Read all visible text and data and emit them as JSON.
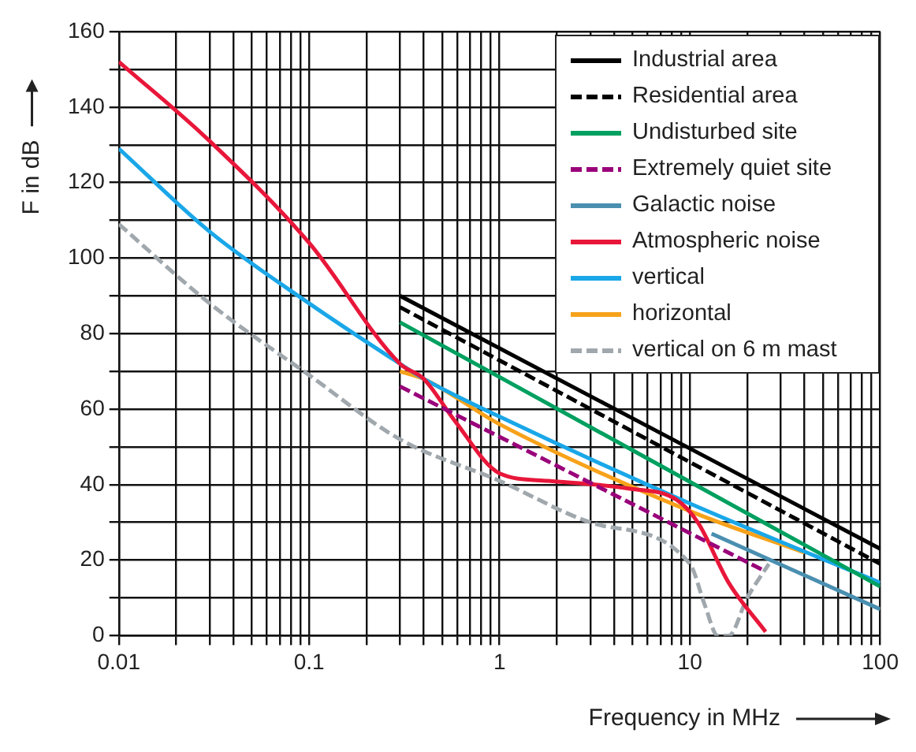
{
  "chart_data": {
    "type": "line",
    "xlabel": "Frequency in MHz",
    "ylabel": "F in dB",
    "log": "x",
    "xlim": [
      0.01,
      100
    ],
    "ylim": [
      0,
      160
    ],
    "xticks": [
      0.01,
      {
        "value": 0.02,
        "label": null
      },
      {
        "value": 0.03,
        "label": null
      },
      {
        "value": 0.04,
        "label": null
      },
      {
        "value": 0.05,
        "label": null
      },
      {
        "value": 0.06,
        "label": null
      },
      {
        "value": 0.07,
        "label": null
      },
      {
        "value": 0.08,
        "label": null
      },
      {
        "value": 0.09,
        "label": null
      },
      0.1,
      {
        "value": 0.2,
        "label": null
      },
      {
        "value": 0.3,
        "label": null
      },
      {
        "value": 0.4,
        "label": null
      },
      {
        "value": 0.5,
        "label": null
      },
      {
        "value": 0.6,
        "label": null
      },
      {
        "value": 0.7,
        "label": null
      },
      {
        "value": 0.8,
        "label": null
      },
      {
        "value": 0.9,
        "label": null
      },
      1,
      {
        "value": 2,
        "label": null
      },
      {
        "value": 3,
        "label": null
      },
      {
        "value": 4,
        "label": null
      },
      {
        "value": 5,
        "label": null
      },
      {
        "value": 6,
        "label": null
      },
      {
        "value": 7,
        "label": null
      },
      {
        "value": 8,
        "label": null
      },
      {
        "value": 9,
        "label": null
      },
      10,
      {
        "value": 20,
        "label": null
      },
      {
        "value": 30,
        "label": null
      },
      {
        "value": 40,
        "label": null
      },
      {
        "value": 50,
        "label": null
      },
      {
        "value": 60,
        "label": null
      },
      {
        "value": 70,
        "label": null
      },
      {
        "value": 80,
        "label": null
      },
      {
        "value": 90,
        "label": null
      },
      100
    ],
    "yticks": [
      0,
      {
        "value": 10,
        "label": null
      },
      20,
      {
        "value": 30,
        "label": null
      },
      40,
      {
        "value": 50,
        "label": null
      },
      60,
      {
        "value": 70,
        "label": null
      },
      80,
      {
        "value": 90,
        "label": null
      },
      100,
      {
        "value": 110,
        "label": null
      },
      120,
      {
        "value": 130,
        "label": null
      },
      140,
      {
        "value": 150,
        "label": null
      },
      160
    ],
    "grid": true,
    "legend": "top right",
    "marker": "none",
    "series": [
      {
        "name": "Industrial area",
        "color": "#000000",
        "line_style": "solid",
        "x": [
          0.3,
          100
        ],
        "values": [
          90,
          23
        ]
      },
      {
        "name": "Residential area",
        "color": "#000000",
        "line_style": "dashed",
        "x": [
          0.3,
          100
        ],
        "values": [
          87,
          19
        ]
      },
      {
        "name": "Undisturbed site",
        "color": "#00a060",
        "line_style": "solid",
        "x": [
          0.3,
          100
        ],
        "values": [
          83,
          13
        ]
      },
      {
        "name": "Extremely quiet site",
        "color": "#99007a",
        "line_style": "dashed",
        "x": [
          0.3,
          25
        ],
        "values": [
          66,
          17
        ]
      },
      {
        "name": "Galactic noise",
        "color": "#4a8fb0",
        "line_style": "solid",
        "x": [
          13,
          100
        ],
        "values": [
          27,
          7
        ]
      },
      {
        "name": "Atmospheric noise",
        "color": "#e8173a",
        "line_style": "solid",
        "x": [
          0.01,
          0.03,
          0.1,
          0.3,
          0.4,
          0.58,
          1,
          1.8,
          4.7,
          8.5,
          11,
          16,
          25
        ],
        "values": [
          152,
          131,
          104,
          72,
          68,
          57,
          43,
          41,
          39,
          36,
          30,
          14,
          1
        ]
      },
      {
        "name": "vertical",
        "color": "#1aa7e8",
        "line_style": "solid",
        "x": [
          0.01,
          0.03,
          0.1,
          0.3,
          0.4,
          1,
          10,
          100
        ],
        "values": [
          129,
          107,
          88,
          72,
          68,
          58,
          35,
          14
        ]
      },
      {
        "name": "horizontal",
        "color": "#f7a21b",
        "line_style": "solid",
        "x": [
          0.3,
          0.4,
          1,
          10,
          40
        ],
        "values": [
          70,
          68,
          56,
          33,
          22
        ]
      },
      {
        "name": "vertical on 6 m mast",
        "color": "#a0a8ad",
        "line_style": "dashed",
        "x": [
          0.01,
          0.03,
          0.1,
          0.3,
          1,
          3,
          10,
          12,
          14,
          16,
          20,
          26
        ],
        "values": [
          109,
          88,
          69,
          52,
          41,
          30,
          19,
          8,
          0,
          0,
          10,
          19
        ]
      }
    ]
  }
}
